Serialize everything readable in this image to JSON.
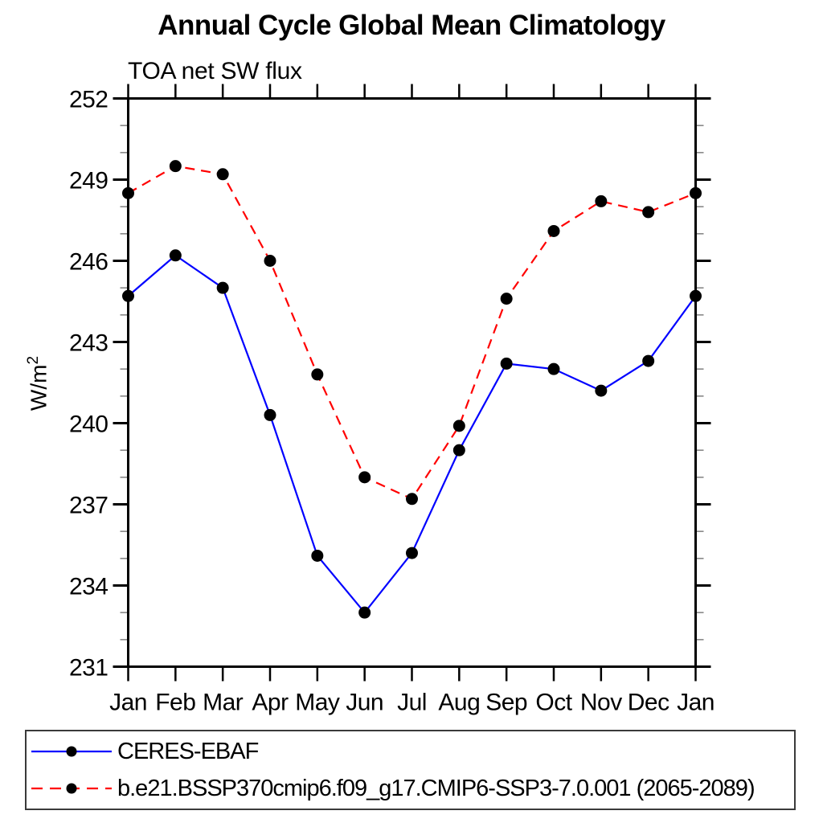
{
  "title": "Annual Cycle Global Mean Climatology",
  "subtitle": "TOA net SW flux",
  "ylabel_parts": {
    "base": "W/m",
    "exp": "2"
  },
  "legend": {
    "entries": [
      {
        "label": "CERES-EBAF"
      },
      {
        "label": "b.e21.BSSP370cmip6.f09_g17.CMIP6-SSP3-7.0.001 (2065-2089)"
      }
    ]
  },
  "colors": {
    "series1": "#0000ff",
    "series2": "#ff0000",
    "marker": "#000000",
    "axis": "#000000",
    "minor_tick": "#888888"
  },
  "chart_data": {
    "type": "line",
    "title": "Annual Cycle Global Mean Climatology",
    "subtitle": "TOA net SW flux",
    "xlabel": "",
    "ylabel": "W/m²",
    "categories": [
      "Jan",
      "Feb",
      "Mar",
      "Apr",
      "May",
      "Jun",
      "Jul",
      "Aug",
      "Sep",
      "Oct",
      "Nov",
      "Dec",
      "Jan"
    ],
    "series": [
      {
        "name": "CERES-EBAF",
        "color": "#0000ff",
        "line_style": "solid",
        "marker": "circle",
        "values": [
          244.7,
          246.2,
          245.0,
          240.3,
          235.1,
          233.0,
          235.2,
          239.0,
          242.2,
          242.0,
          241.2,
          242.3,
          244.7
        ]
      },
      {
        "name": "b.e21.BSSP370cmip6.f09_g17.CMIP6-SSP3-7.0.001 (2065-2089)",
        "color": "#ff0000",
        "line_style": "dashed",
        "marker": "circle",
        "values": [
          248.5,
          249.5,
          249.2,
          246.0,
          241.8,
          238.0,
          237.2,
          239.9,
          244.6,
          247.1,
          248.2,
          247.8,
          248.5
        ]
      }
    ],
    "ylim": [
      231,
      252
    ],
    "yticks": [
      231,
      234,
      237,
      240,
      243,
      246,
      249,
      252
    ],
    "minor_tick_step": 1,
    "grid": false,
    "legend_position": "bottom"
  }
}
